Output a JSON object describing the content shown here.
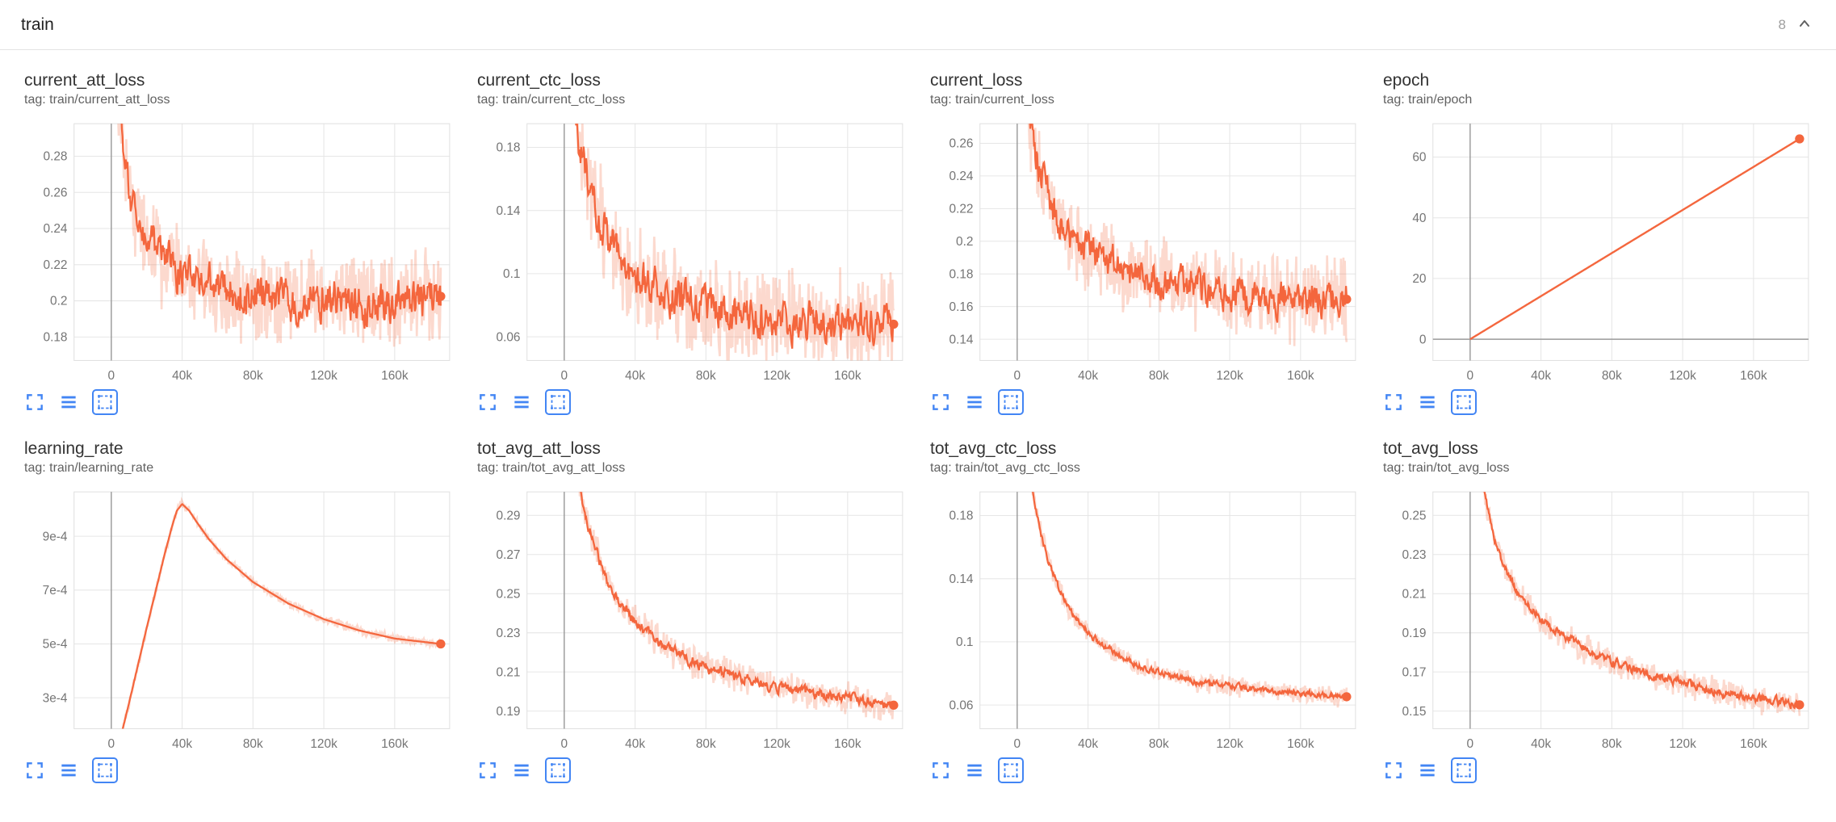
{
  "header": {
    "title": "train",
    "count": "8"
  },
  "colors": {
    "series": "#f4663d",
    "series_faded": "rgba(244,102,61,0.25)",
    "accent_blue": "#4285f4",
    "grid_line": "#e6e6e6",
    "axis_zero_line": "#9a9a9a",
    "tick_text": "#757575"
  },
  "toolbar": {
    "icons": [
      {
        "name": "fullscreen-icon",
        "active": false
      },
      {
        "name": "runs-selector-icon",
        "active": false
      },
      {
        "name": "fit-domain-icon",
        "active": true
      }
    ]
  },
  "chart_data": [
    {
      "type": "line",
      "title": "current_att_loss",
      "tag": "tag: train/current_att_loss",
      "xlabel": "",
      "ylabel": "",
      "legend_position": "none",
      "grid": true,
      "x_ticks": [
        0,
        40000,
        80000,
        120000,
        160000
      ],
      "x_tick_labels": [
        "0",
        "40k",
        "80k",
        "120k",
        "160k"
      ],
      "x_range": [
        -21000,
        191000
      ],
      "data_x_range": [
        1000,
        186000
      ],
      "y_range": [
        0.167,
        0.298
      ],
      "y_ticks": [
        0.18,
        0.2,
        0.22,
        0.24,
        0.26,
        0.28
      ],
      "y_tick_labels": [
        "0.18",
        "0.2",
        "0.22",
        "0.24",
        "0.26",
        "0.28"
      ],
      "trend": [
        [
          1000,
          0.345
        ],
        [
          6000,
          0.3
        ],
        [
          9000,
          0.272
        ],
        [
          12000,
          0.254
        ],
        [
          16000,
          0.243
        ],
        [
          20000,
          0.234
        ],
        [
          25000,
          0.227
        ],
        [
          30000,
          0.222
        ],
        [
          40000,
          0.215
        ],
        [
          50000,
          0.21
        ],
        [
          60000,
          0.207
        ],
        [
          80000,
          0.2035
        ],
        [
          100000,
          0.2015
        ],
        [
          120000,
          0.2005
        ],
        [
          140000,
          0.1995
        ],
        [
          160000,
          0.2
        ],
        [
          186000,
          0.2025
        ]
      ],
      "noise_raw": 0.02,
      "noise_smooth": 0.0095,
      "end_dot": [
        186000,
        0.2025
      ],
      "final_value": 0.2025
    },
    {
      "type": "line",
      "title": "current_ctc_loss",
      "tag": "tag: train/current_ctc_loss",
      "xlabel": "",
      "ylabel": "",
      "legend_position": "none",
      "grid": true,
      "x_ticks": [
        0,
        40000,
        80000,
        120000,
        160000
      ],
      "x_tick_labels": [
        "0",
        "40k",
        "80k",
        "120k",
        "160k"
      ],
      "x_range": [
        -21000,
        191000
      ],
      "data_x_range": [
        1000,
        186000
      ],
      "y_range": [
        0.045,
        0.195
      ],
      "y_ticks": [
        0.06,
        0.1,
        0.14,
        0.18
      ],
      "y_tick_labels": [
        "0.06",
        "0.1",
        "0.14",
        "0.18"
      ],
      "trend": [
        [
          1000,
          0.265
        ],
        [
          6000,
          0.205
        ],
        [
          9000,
          0.182
        ],
        [
          12000,
          0.166
        ],
        [
          16000,
          0.15
        ],
        [
          20000,
          0.135
        ],
        [
          25000,
          0.122
        ],
        [
          30000,
          0.113
        ],
        [
          40000,
          0.1
        ],
        [
          50000,
          0.092
        ],
        [
          60000,
          0.086
        ],
        [
          80000,
          0.0785
        ],
        [
          100000,
          0.074
        ],
        [
          120000,
          0.071
        ],
        [
          140000,
          0.069
        ],
        [
          160000,
          0.068
        ],
        [
          186000,
          0.068
        ]
      ],
      "noise_raw": 0.023,
      "noise_smooth": 0.0105,
      "end_dot": [
        186000,
        0.068
      ],
      "final_value": 0.068
    },
    {
      "type": "line",
      "title": "current_loss",
      "tag": "tag: train/current_loss",
      "xlabel": "",
      "ylabel": "",
      "legend_position": "none",
      "grid": true,
      "x_ticks": [
        0,
        40000,
        80000,
        120000,
        160000
      ],
      "x_tick_labels": [
        "0",
        "40k",
        "80k",
        "120k",
        "160k"
      ],
      "x_range": [
        -21000,
        191000
      ],
      "data_x_range": [
        1000,
        186000
      ],
      "y_range": [
        0.127,
        0.272
      ],
      "y_ticks": [
        0.14,
        0.16,
        0.18,
        0.2,
        0.22,
        0.24,
        0.26
      ],
      "y_tick_labels": [
        "0.14",
        "0.16",
        "0.18",
        "0.2",
        "0.22",
        "0.24",
        "0.26"
      ],
      "trend": [
        [
          1000,
          0.33
        ],
        [
          6000,
          0.285
        ],
        [
          9000,
          0.263
        ],
        [
          12000,
          0.247
        ],
        [
          16000,
          0.232
        ],
        [
          20000,
          0.22
        ],
        [
          25000,
          0.2105
        ],
        [
          30000,
          0.2035
        ],
        [
          40000,
          0.194
        ],
        [
          50000,
          0.188
        ],
        [
          60000,
          0.1835
        ],
        [
          80000,
          0.177
        ],
        [
          100000,
          0.172
        ],
        [
          120000,
          0.168
        ],
        [
          140000,
          0.165
        ],
        [
          160000,
          0.1635
        ],
        [
          186000,
          0.1645
        ]
      ],
      "noise_raw": 0.019,
      "noise_smooth": 0.009,
      "end_dot": [
        186000,
        0.1645
      ],
      "final_value": 0.1645
    },
    {
      "type": "line",
      "title": "epoch",
      "tag": "tag: train/epoch",
      "xlabel": "",
      "ylabel": "",
      "legend_position": "none",
      "grid": true,
      "x_ticks": [
        0,
        40000,
        80000,
        120000,
        160000
      ],
      "x_tick_labels": [
        "0",
        "40k",
        "80k",
        "120k",
        "160k"
      ],
      "x_range": [
        -21000,
        191000
      ],
      "data_x_range": [
        0,
        186000
      ],
      "y_range": [
        -7,
        71
      ],
      "y_ticks": [
        0,
        20,
        40,
        60
      ],
      "y_tick_labels": [
        "0",
        "20",
        "40",
        "60"
      ],
      "trend": [
        [
          0,
          0
        ],
        [
          186000,
          66
        ]
      ],
      "noise_raw": 0,
      "noise_smooth": 0,
      "end_dot": [
        186000,
        66
      ],
      "final_value": 66
    },
    {
      "type": "line",
      "title": "learning_rate",
      "tag": "tag: train/learning_rate",
      "xlabel": "",
      "ylabel": "",
      "legend_position": "none",
      "grid": true,
      "x_ticks": [
        0,
        40000,
        80000,
        120000,
        160000
      ],
      "x_tick_labels": [
        "0",
        "40k",
        "80k",
        "120k",
        "160k"
      ],
      "x_range": [
        -21000,
        191000
      ],
      "data_x_range": [
        1000,
        186000
      ],
      "y_range": [
        0.000185,
        0.001065
      ],
      "y_ticks": [
        0.0003,
        0.0005,
        0.0007,
        0.0009
      ],
      "y_tick_labels": [
        "3e-4",
        "5e-4",
        "7e-4",
        "9e-4"
      ],
      "trend": [
        [
          5000,
          0.000145
        ],
        [
          10000,
          0.00028
        ],
        [
          15000,
          0.00042
        ],
        [
          20000,
          0.00056
        ],
        [
          25000,
          0.000695
        ],
        [
          30000,
          0.00083
        ],
        [
          34000,
          0.00093
        ],
        [
          37000,
          0.000995
        ],
        [
          40000,
          0.00102
        ],
        [
          44000,
          0.000995
        ],
        [
          48000,
          0.000955
        ],
        [
          55000,
          0.00089
        ],
        [
          65000,
          0.000815
        ],
        [
          80000,
          0.00073
        ],
        [
          100000,
          0.00065
        ],
        [
          120000,
          0.000592
        ],
        [
          140000,
          0.00055
        ],
        [
          160000,
          0.00052
        ],
        [
          186000,
          0.0005
        ]
      ],
      "noise_raw": 1.2e-05,
      "noise_smooth": 0,
      "end_dot": [
        186000,
        0.0005
      ],
      "final_value": 0.0005
    },
    {
      "type": "line",
      "title": "tot_avg_att_loss",
      "tag": "tag: train/tot_avg_att_loss",
      "xlabel": "",
      "ylabel": "",
      "legend_position": "none",
      "grid": true,
      "x_ticks": [
        0,
        40000,
        80000,
        120000,
        160000
      ],
      "x_tick_labels": [
        "0",
        "40k",
        "80k",
        "120k",
        "160k"
      ],
      "x_range": [
        -21000,
        191000
      ],
      "data_x_range": [
        1000,
        186000
      ],
      "y_range": [
        0.181,
        0.302
      ],
      "y_ticks": [
        0.19,
        0.21,
        0.23,
        0.25,
        0.27,
        0.29
      ],
      "y_tick_labels": [
        "0.19",
        "0.21",
        "0.23",
        "0.25",
        "0.27",
        "0.29"
      ],
      "trend": [
        [
          1000,
          0.335
        ],
        [
          6000,
          0.315
        ],
        [
          10000,
          0.298
        ],
        [
          14000,
          0.284
        ],
        [
          18000,
          0.272
        ],
        [
          22000,
          0.262
        ],
        [
          26000,
          0.254
        ],
        [
          30000,
          0.2475
        ],
        [
          36000,
          0.2405
        ],
        [
          42000,
          0.2345
        ],
        [
          50000,
          0.228
        ],
        [
          60000,
          0.2215
        ],
        [
          70000,
          0.2165
        ],
        [
          80000,
          0.2125
        ],
        [
          90000,
          0.2095
        ],
        [
          100000,
          0.207
        ],
        [
          110000,
          0.2045
        ],
        [
          120000,
          0.2025
        ],
        [
          130000,
          0.2008
        ],
        [
          140000,
          0.1992
        ],
        [
          150000,
          0.1978
        ],
        [
          160000,
          0.1962
        ],
        [
          170000,
          0.1948
        ],
        [
          186000,
          0.193
        ]
      ],
      "noise_raw": 0.006,
      "noise_smooth": 0.0024,
      "end_dot": [
        186000,
        0.193
      ],
      "final_value": 0.193
    },
    {
      "type": "line",
      "title": "tot_avg_ctc_loss",
      "tag": "tag: train/tot_avg_ctc_loss",
      "xlabel": "",
      "ylabel": "",
      "legend_position": "none",
      "grid": true,
      "x_ticks": [
        0,
        40000,
        80000,
        120000,
        160000
      ],
      "x_tick_labels": [
        "0",
        "40k",
        "80k",
        "120k",
        "160k"
      ],
      "x_range": [
        -21000,
        191000
      ],
      "data_x_range": [
        1000,
        186000
      ],
      "y_range": [
        0.045,
        0.195
      ],
      "y_ticks": [
        0.06,
        0.1,
        0.14,
        0.18
      ],
      "y_tick_labels": [
        "0.06",
        "0.1",
        "0.14",
        "0.18"
      ],
      "trend": [
        [
          1000,
          0.245
        ],
        [
          6000,
          0.212
        ],
        [
          10000,
          0.186
        ],
        [
          14000,
          0.166
        ],
        [
          18000,
          0.15
        ],
        [
          22000,
          0.138
        ],
        [
          26000,
          0.128
        ],
        [
          30000,
          0.12
        ],
        [
          36000,
          0.111
        ],
        [
          42000,
          0.104
        ],
        [
          50000,
          0.0965
        ],
        [
          60000,
          0.0895
        ],
        [
          70000,
          0.0845
        ],
        [
          80000,
          0.0805
        ],
        [
          90000,
          0.0775
        ],
        [
          100000,
          0.0752
        ],
        [
          110000,
          0.0735
        ],
        [
          120000,
          0.0718
        ],
        [
          130000,
          0.0705
        ],
        [
          140000,
          0.0693
        ],
        [
          150000,
          0.0683
        ],
        [
          160000,
          0.0673
        ],
        [
          170000,
          0.0664
        ],
        [
          186000,
          0.0652
        ]
      ],
      "noise_raw": 0.0048,
      "noise_smooth": 0.0018,
      "end_dot": [
        186000,
        0.0652
      ],
      "final_value": 0.0652
    },
    {
      "type": "line",
      "title": "tot_avg_loss",
      "tag": "tag: train/tot_avg_loss",
      "xlabel": "",
      "ylabel": "",
      "legend_position": "none",
      "grid": true,
      "x_ticks": [
        0,
        40000,
        80000,
        120000,
        160000
      ],
      "x_tick_labels": [
        "0",
        "40k",
        "80k",
        "120k",
        "160k"
      ],
      "x_range": [
        -21000,
        191000
      ],
      "data_x_range": [
        1000,
        186000
      ],
      "y_range": [
        0.141,
        0.262
      ],
      "y_ticks": [
        0.15,
        0.17,
        0.19,
        0.21,
        0.23,
        0.25
      ],
      "y_tick_labels": [
        "0.15",
        "0.17",
        "0.19",
        "0.21",
        "0.23",
        "0.25"
      ],
      "trend": [
        [
          1000,
          0.292
        ],
        [
          6000,
          0.27
        ],
        [
          10000,
          0.252
        ],
        [
          14000,
          0.238
        ],
        [
          18000,
          0.227
        ],
        [
          22000,
          0.219
        ],
        [
          26000,
          0.2125
        ],
        [
          30000,
          0.207
        ],
        [
          36000,
          0.201
        ],
        [
          42000,
          0.1955
        ],
        [
          50000,
          0.19
        ],
        [
          60000,
          0.1842
        ],
        [
          70000,
          0.1795
        ],
        [
          80000,
          0.1755
        ],
        [
          90000,
          0.172
        ],
        [
          100000,
          0.169
        ],
        [
          110000,
          0.1665
        ],
        [
          120000,
          0.1642
        ],
        [
          130000,
          0.162
        ],
        [
          140000,
          0.16
        ],
        [
          150000,
          0.1582
        ],
        [
          160000,
          0.1566
        ],
        [
          170000,
          0.1552
        ],
        [
          186000,
          0.1532
        ]
      ],
      "noise_raw": 0.0052,
      "noise_smooth": 0.002,
      "end_dot": [
        186000,
        0.1532
      ],
      "final_value": 0.1532
    }
  ]
}
